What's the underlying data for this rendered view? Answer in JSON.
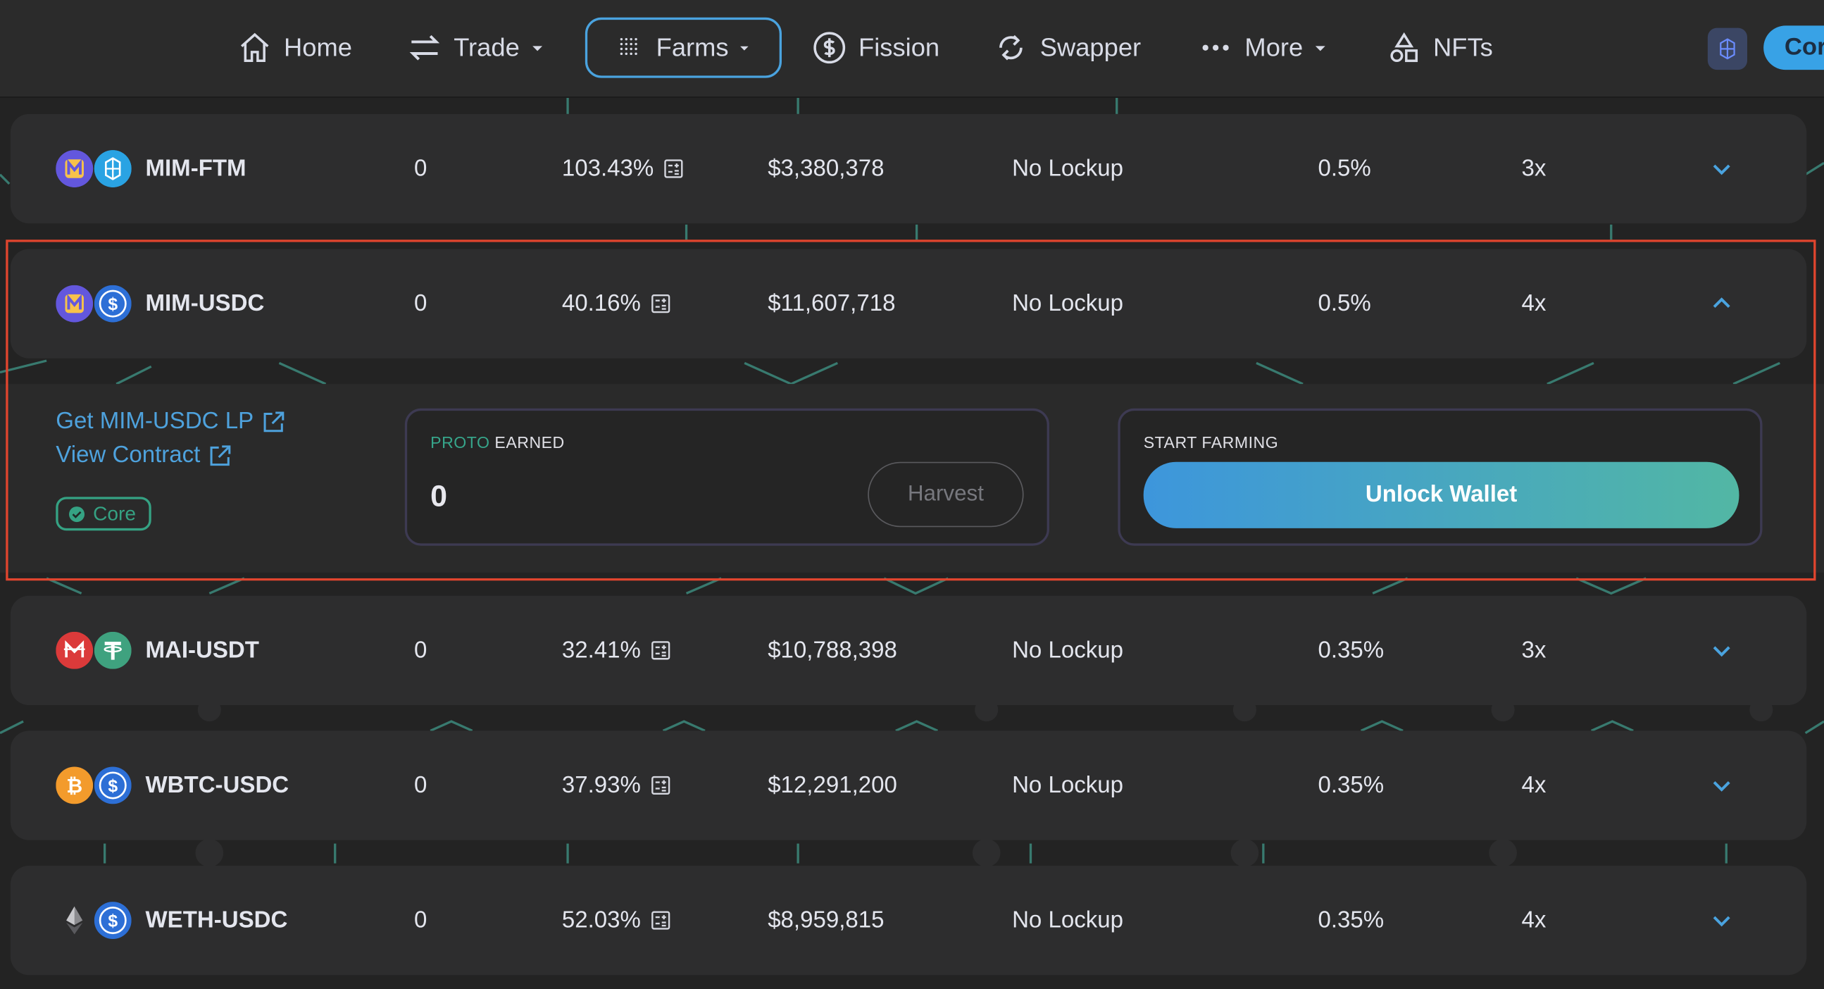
{
  "nav": {
    "home": "Home",
    "trade": "Trade",
    "farms": "Farms",
    "fission": "Fission",
    "swapper": "Swapper",
    "more": "More",
    "nfts": "NFTs",
    "connect": "Cor"
  },
  "farms": [
    {
      "pair": "MIM-FTM",
      "earned": "0",
      "apr": "103.43%",
      "liquidity": "$3,380,378",
      "lockup": "No Lockup",
      "fee": "0.5%",
      "multiplier": "3x",
      "expanded": false,
      "tokens": [
        "mim-token",
        "ftm-token"
      ]
    },
    {
      "pair": "MIM-USDC",
      "earned": "0",
      "apr": "40.16%",
      "liquidity": "$11,607,718",
      "lockup": "No Lockup",
      "fee": "0.5%",
      "multiplier": "4x",
      "expanded": true,
      "tokens": [
        "mim-token",
        "usdc-token"
      ]
    },
    {
      "pair": "MAI-USDT",
      "earned": "0",
      "apr": "32.41%",
      "liquidity": "$10,788,398",
      "lockup": "No Lockup",
      "fee": "0.35%",
      "multiplier": "3x",
      "expanded": false,
      "tokens": [
        "mai-token",
        "usdt-token"
      ]
    },
    {
      "pair": "WBTC-USDC",
      "earned": "0",
      "apr": "37.93%",
      "liquidity": "$12,291,200",
      "lockup": "No Lockup",
      "fee": "0.35%",
      "multiplier": "4x",
      "expanded": false,
      "tokens": [
        "wbtc-token",
        "usdc-token"
      ]
    },
    {
      "pair": "WETH-USDC",
      "earned": "0",
      "apr": "52.03%",
      "liquidity": "$8,959,815",
      "lockup": "No Lockup",
      "fee": "0.35%",
      "multiplier": "4x",
      "expanded": false,
      "tokens": [
        "weth-token",
        "usdc-token"
      ]
    }
  ],
  "details": {
    "get_lp": "Get MIM-USDC LP",
    "view_contract": "View Contract",
    "core_badge": "Core",
    "earned_token": "PROTO",
    "earned_label": "EARNED",
    "earned_value": "0",
    "harvest": "Harvest",
    "start_farming": "START FARMING",
    "unlock": "Unlock Wallet"
  },
  "colors": {
    "accent": "#4aa3df",
    "highlight": "#e0452e",
    "core_green": "#35a283"
  }
}
